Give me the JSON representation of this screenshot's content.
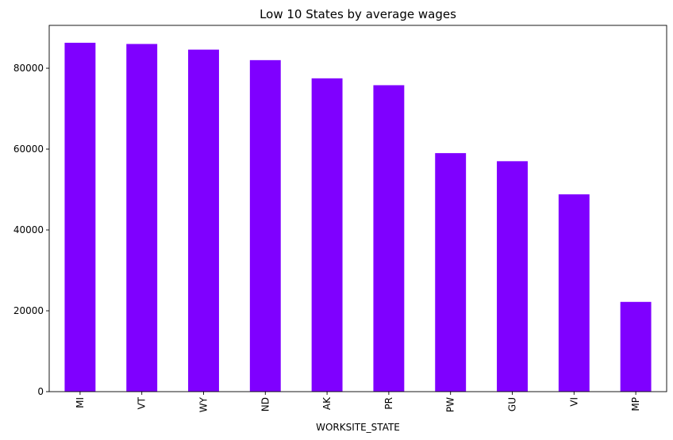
{
  "chart_data": {
    "type": "bar",
    "title": "Low 10 States by average wages",
    "xlabel": "WORKSITE_STATE",
    "ylabel": "",
    "categories": [
      "MI",
      "VT",
      "WY",
      "ND",
      "AK",
      "PR",
      "PW",
      "GU",
      "VI",
      "MP"
    ],
    "values": [
      86300,
      86000,
      84600,
      82000,
      77500,
      75800,
      59000,
      57000,
      48800,
      22200
    ],
    "ylim": [
      0,
      90600
    ],
    "yticks": [
      0,
      20000,
      40000,
      60000,
      80000
    ],
    "ytick_labels": [
      "0",
      "20000",
      "40000",
      "60000",
      "80000"
    ],
    "bar_color": "#7f00ff",
    "grid": false,
    "legend": "none"
  }
}
